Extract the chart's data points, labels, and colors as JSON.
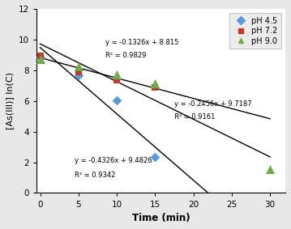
{
  "title": "",
  "xlabel": "Time (min)",
  "ylabel": "[As(III)] ln(C)",
  "xlim": [
    -0.5,
    32
  ],
  "ylim": [
    0,
    12
  ],
  "xticks": [
    0,
    5,
    10,
    15,
    20,
    25,
    30
  ],
  "yticks": [
    0,
    2,
    4,
    6,
    8,
    10,
    12
  ],
  "series": [
    {
      "label": "pH 4.5",
      "color": "#5b9bd5",
      "marker": "D",
      "markersize": 6,
      "x": [
        0,
        5,
        10,
        15
      ],
      "y": [
        8.85,
        7.65,
        6.05,
        2.35
      ],
      "fit_slope": -0.4326,
      "fit_intercept": 9.4826,
      "fit_eq": "y = -0.4326x + 9.4826",
      "fit_r2": "R² = 0.9342",
      "eq_x": 4.5,
      "eq_y": 1.85,
      "r2_x": 4.5,
      "r2_y": 0.9
    },
    {
      "label": "pH 7.2",
      "color": "#c0392b",
      "marker": "s",
      "markersize": 6,
      "x": [
        0,
        5,
        10,
        15
      ],
      "y": [
        8.95,
        7.9,
        7.35,
        6.9
      ],
      "fit_slope": -0.1326,
      "fit_intercept": 8.815,
      "fit_eq": "y = -0.1326x + 8.815",
      "fit_r2": "R² = 0.9829",
      "eq_x": 8.5,
      "eq_y": 9.55,
      "r2_x": 8.5,
      "r2_y": 8.75
    },
    {
      "label": "pH 9.0",
      "color": "#70ad47",
      "marker": "^",
      "markersize": 8,
      "x": [
        0,
        5,
        10,
        15,
        30
      ],
      "y": [
        8.75,
        8.25,
        7.75,
        7.15,
        1.55
      ],
      "fit_slope": -0.2456,
      "fit_intercept": 9.7187,
      "fit_eq": "y = -0.2456x + 9.7187",
      "fit_r2": "R² = 0.9161",
      "eq_x": 17.5,
      "eq_y": 5.55,
      "r2_x": 17.5,
      "r2_y": 4.7
    }
  ],
  "legend_loc": "upper right",
  "fig_bg_color": "#e8e8e8",
  "axes_bg_color": "#ffffff"
}
